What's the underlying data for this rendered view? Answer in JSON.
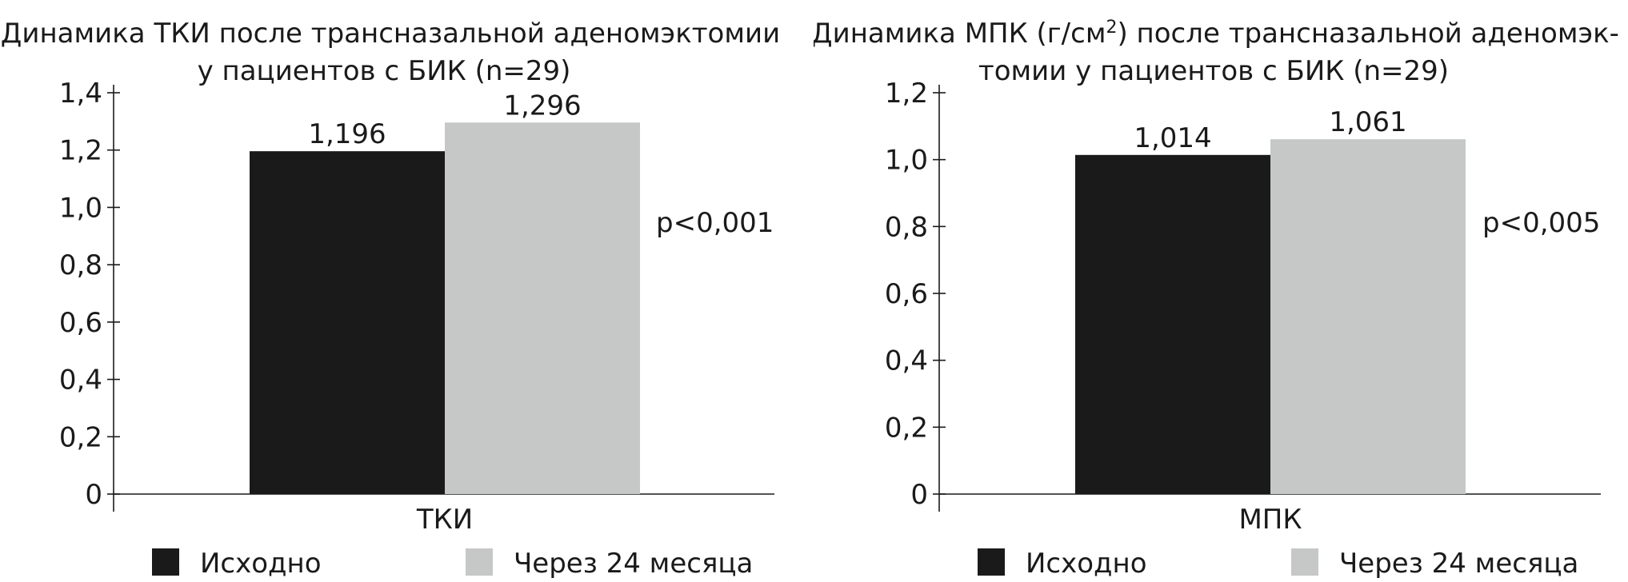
{
  "colors": {
    "baseline": "#1a1a1a",
    "after": "#c6c7c7"
  },
  "chart_data": [
    {
      "type": "bar",
      "title_lines": [
        "Динамика ТКИ после трансназальной аденомэктомии",
        "у пациентов с БИК (n=29)"
      ],
      "categories": [
        "ТКИ"
      ],
      "series": [
        {
          "name": "Исходно",
          "values": [
            1.196
          ],
          "value_label": "1,196"
        },
        {
          "name": "Через 24 месяца",
          "values": [
            1.296
          ],
          "value_label": "1,296"
        }
      ],
      "ylim": [
        0,
        1.4
      ],
      "yticks": [
        0,
        0.2,
        0.4,
        0.6,
        0.8,
        1.0,
        1.2,
        1.4
      ],
      "ytick_labels": [
        "0",
        "0,2",
        "0,4",
        "0,6",
        "0,8",
        "1,0",
        "1,2",
        "1,4"
      ],
      "annotation": "p<0,001",
      "grid": false,
      "legend_placement": "bottom"
    },
    {
      "type": "bar",
      "title_parts": [
        {
          "text": "Динамика МПК (г/см"
        },
        {
          "text": "2",
          "sup": true
        },
        {
          "text": ") после трансназальной аденомэк-"
        }
      ],
      "title_line2": "томии у пациентов с БИК (n=29)",
      "categories": [
        "МПК"
      ],
      "series": [
        {
          "name": "Исходно",
          "values": [
            1.014
          ],
          "value_label": "1,014"
        },
        {
          "name": "Через 24 месяца",
          "values": [
            1.061
          ],
          "value_label": "1,061"
        }
      ],
      "ylim": [
        0,
        1.2
      ],
      "yticks": [
        0,
        0.2,
        0.4,
        0.6,
        0.8,
        1.0,
        1.2
      ],
      "ytick_labels": [
        "0",
        "0,2",
        "0,4",
        "0,6",
        "0,8",
        "1,0",
        "1,2"
      ],
      "annotation": "p<0,005",
      "grid": false,
      "legend_placement": "bottom"
    }
  ]
}
